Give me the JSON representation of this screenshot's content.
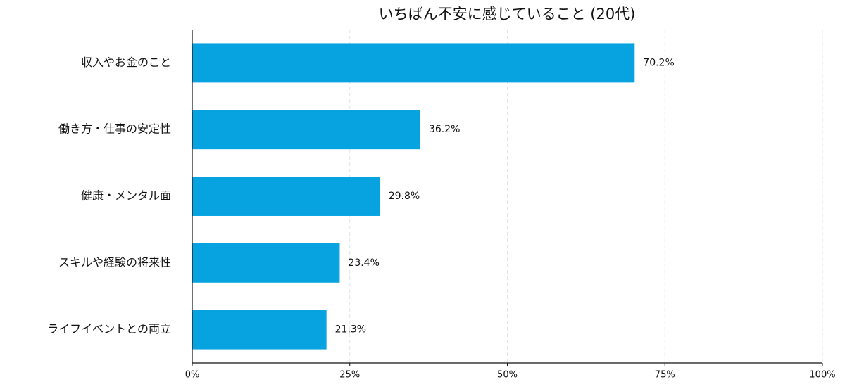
{
  "chart_data": {
    "type": "bar",
    "orientation": "horizontal",
    "title": "いちばん不安に感じていること (20代)",
    "categories": [
      "収入やお金のこと",
      "働き方・仕事の安定性",
      "健康・メンタル面",
      "スキルや経験の将来性",
      "ライフイベントとの両立"
    ],
    "values": [
      70.2,
      36.2,
      29.8,
      23.4,
      21.3
    ],
    "value_labels": [
      "70.2%",
      "36.2%",
      "29.8%",
      "23.4%",
      "21.3%"
    ],
    "xlim": [
      0,
      100
    ],
    "xticks": [
      0,
      25,
      50,
      75,
      100
    ],
    "xtick_labels": [
      "0%",
      "25%",
      "50%",
      "75%",
      "100%"
    ],
    "xlabel": "",
    "ylabel": "",
    "grid": "vertical dashed",
    "bar_color": "#06A3E0"
  }
}
